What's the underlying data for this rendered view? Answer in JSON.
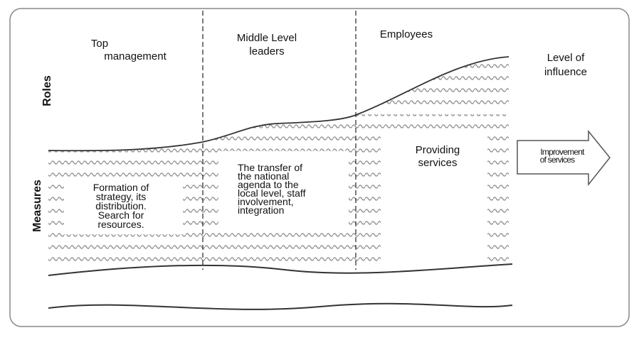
{
  "columns": {
    "top": [
      "Top",
      "management"
    ],
    "middle": [
      "Middle Level",
      "leaders"
    ],
    "employees": "Employees",
    "influence": [
      "Level of",
      "influence"
    ]
  },
  "rows": {
    "roles": "Roles",
    "measures": "Measures"
  },
  "measures": {
    "top": [
      "Formation of",
      "strategy, its",
      "distribution.",
      "Search for",
      "resources."
    ],
    "middle": [
      "The transfer of",
      "the national",
      "agenda to the",
      "local level, staff",
      "involvement,",
      "integration"
    ],
    "employees": [
      "Providing",
      "services"
    ]
  },
  "arrow": [
    "Improvement",
    "of services"
  ],
  "colors": {
    "stroke": "#333333",
    "pattern": "#9a9a9a",
    "frame": "#888888"
  }
}
